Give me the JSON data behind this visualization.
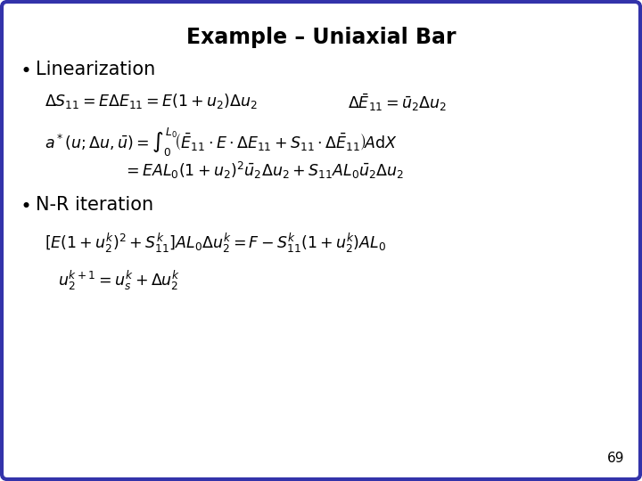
{
  "title": "Example – Uniaxial Bar",
  "background_color": "#ffffff",
  "border_color": "#3333aa",
  "page_number": "69",
  "bullet1": "Linearization",
  "bullet2": "N-R iteration",
  "title_fontsize": 17,
  "bullet_fontsize": 15,
  "eq_fontsize": 12.5,
  "page_fontsize": 11
}
